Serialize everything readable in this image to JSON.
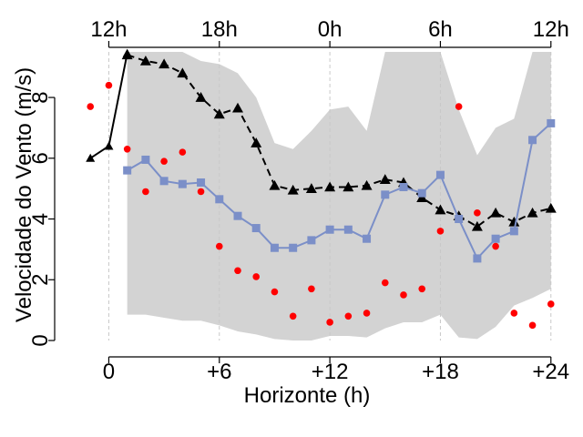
{
  "chart_data": {
    "type": "line",
    "title": "",
    "xlabel": "Horizonte (h)",
    "ylabel": "Velocidade do Vento (m/s)",
    "xlim": [
      -2,
      25
    ],
    "ylim": [
      0,
      9.5
    ],
    "grid": "vertical-dashed",
    "x_ticks": [
      {
        "value": 0,
        "label": "0"
      },
      {
        "value": 6,
        "label": "+6"
      },
      {
        "value": 12,
        "label": "+12"
      },
      {
        "value": 18,
        "label": "+18"
      },
      {
        "value": 24,
        "label": "+24"
      }
    ],
    "y_ticks": [
      {
        "value": 0,
        "label": "0"
      },
      {
        "value": 2,
        "label": "2"
      },
      {
        "value": 4,
        "label": "4"
      },
      {
        "value": 6,
        "label": "6"
      },
      {
        "value": 8,
        "label": "8"
      }
    ],
    "top_ticks": [
      {
        "value": 0,
        "label": "12h"
      },
      {
        "value": 6,
        "label": "18h"
      },
      {
        "value": 12,
        "label": "0h"
      },
      {
        "value": 18,
        "label": "6h"
      },
      {
        "value": 24,
        "label": "12h"
      }
    ],
    "band": {
      "color": "#d3d3d3",
      "x": [
        1,
        2,
        3,
        4,
        5,
        6,
        7,
        8,
        9,
        10,
        11,
        12,
        13,
        14,
        15,
        16,
        17,
        18,
        19,
        20,
        21,
        22,
        23,
        24
      ],
      "upper": [
        9.5,
        9.5,
        9.5,
        9.5,
        9.2,
        9.1,
        8.8,
        8.0,
        6.5,
        6.3,
        6.9,
        7.6,
        7.7,
        6.9,
        9.5,
        9.5,
        9.5,
        9.5,
        7.6,
        6.1,
        7.0,
        7.3,
        9.5,
        9.5
      ],
      "lower": [
        0.85,
        0.85,
        0.75,
        0.65,
        0.65,
        0.5,
        0.3,
        0.2,
        0.05,
        0.0,
        0.0,
        0.15,
        0.15,
        0.1,
        0.4,
        0.6,
        0.6,
        0.85,
        0.1,
        0.05,
        0.45,
        1.15,
        1.4,
        1.7
      ]
    },
    "series": [
      {
        "color": "#000000",
        "marker": "circle-line",
        "style": "solid",
        "x": [
          -1,
          0,
          1
        ],
        "y": [
          6.0,
          6.4,
          9.45
        ]
      },
      {
        "color": "#000000",
        "marker": "triangle",
        "style": "dashed",
        "x": [
          1,
          2,
          3,
          4,
          5,
          6,
          7,
          8,
          9,
          10,
          11,
          12,
          13,
          14,
          15,
          16,
          17,
          18,
          19,
          20,
          21,
          22,
          23,
          24
        ],
        "y": [
          9.4,
          9.2,
          9.1,
          8.8,
          8.0,
          7.45,
          7.65,
          6.5,
          5.1,
          4.95,
          5.0,
          5.05,
          5.05,
          5.1,
          5.3,
          5.2,
          4.7,
          4.3,
          4.1,
          3.75,
          4.2,
          3.9,
          4.2,
          4.35
        ]
      },
      {
        "color": "#7b8fc8",
        "marker": "square",
        "style": "solid",
        "x": [
          1,
          2,
          3,
          4,
          5,
          6,
          7,
          8,
          9,
          10,
          11,
          12,
          13,
          14,
          15,
          16,
          17,
          18,
          19,
          20,
          21,
          22,
          23,
          24
        ],
        "y": [
          5.6,
          5.95,
          5.25,
          5.15,
          5.2,
          4.65,
          4.1,
          3.7,
          3.05,
          3.05,
          3.3,
          3.65,
          3.65,
          3.35,
          4.8,
          5.05,
          4.85,
          5.45,
          4.0,
          2.7,
          3.35,
          3.6,
          6.6,
          7.15
        ]
      },
      {
        "color": "#ff0000",
        "marker": "dot",
        "style": "none",
        "x": [
          -1,
          0,
          1,
          2,
          3,
          4,
          5,
          6,
          7,
          8,
          9,
          10,
          11,
          12,
          13,
          14,
          15,
          16,
          17,
          18,
          19,
          20,
          21,
          22,
          23,
          24
        ],
        "y": [
          7.7,
          8.4,
          6.3,
          4.9,
          5.9,
          6.2,
          4.9,
          3.1,
          2.3,
          2.1,
          1.6,
          0.8,
          1.7,
          0.6,
          0.8,
          0.9,
          1.9,
          1.5,
          1.7,
          3.6,
          7.7,
          4.2,
          3.1,
          0.9,
          0.5,
          1.2
        ]
      }
    ]
  }
}
